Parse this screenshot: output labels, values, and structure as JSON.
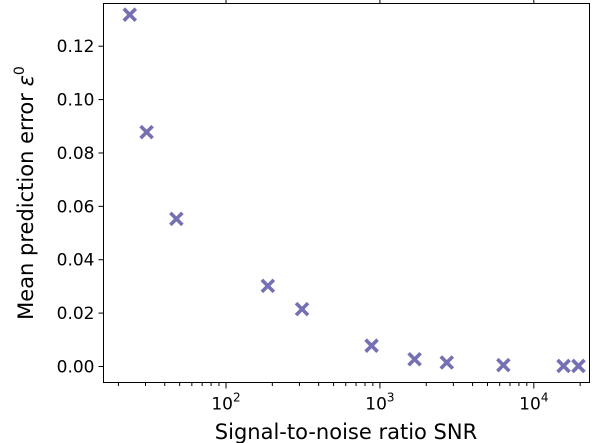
{
  "chart_data": {
    "type": "scatter",
    "xlabel": "Signal-to-noise ratio SNR",
    "ylabel": "Mean prediction error",
    "ylabel_symbol": "ε",
    "ylabel_superscript": "0",
    "x_scale": "log",
    "xlim": [
      16,
      23000
    ],
    "ylim": [
      -0.006,
      0.136
    ],
    "x_major_ticks": [
      {
        "value": 100,
        "base": "10",
        "exp": "2"
      },
      {
        "value": 1000,
        "base": "10",
        "exp": "3"
      },
      {
        "value": 10000,
        "base": "10",
        "exp": "4"
      }
    ],
    "y_ticks": [
      {
        "value": 0.0,
        "label": "0.00"
      },
      {
        "value": 0.02,
        "label": "0.02"
      },
      {
        "value": 0.04,
        "label": "0.04"
      },
      {
        "value": 0.06,
        "label": "0.06"
      },
      {
        "value": 0.08,
        "label": "0.08"
      },
      {
        "value": 0.1,
        "label": "0.10"
      },
      {
        "value": 0.12,
        "label": "0.12"
      }
    ],
    "marker": "x",
    "color": "#7570b3",
    "grid": false,
    "x": [
      23.7,
      30.5,
      47.6,
      187,
      312,
      883,
      1680,
      2720,
      6340,
      15600,
      19500
    ],
    "y": [
      0.1318,
      0.0878,
      0.0553,
      0.0302,
      0.0215,
      0.0078,
      0.0027,
      0.0015,
      0.0005,
      0.0002,
      0.0002
    ]
  }
}
